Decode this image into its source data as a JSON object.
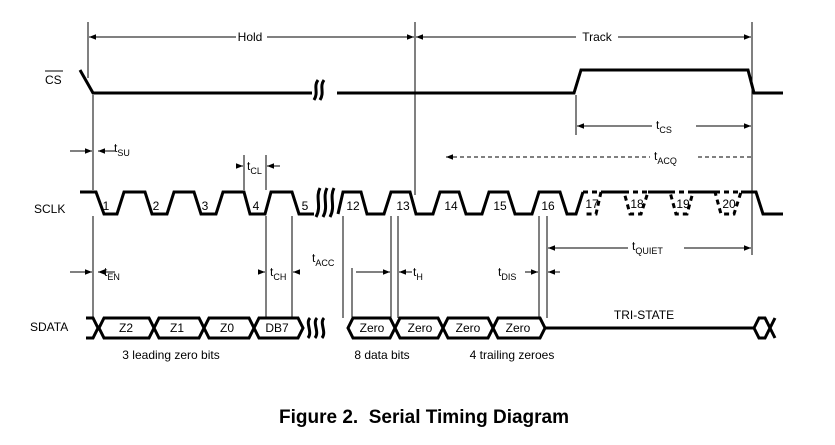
{
  "phases": {
    "hold": "Hold",
    "track": "Track"
  },
  "signals": {
    "cs": "CS",
    "sclk": "SCLK",
    "sdata": "SDATA"
  },
  "clock_numbers": [
    "1",
    "2",
    "3",
    "4",
    "5",
    "12",
    "13",
    "14",
    "15",
    "16",
    "17",
    "18",
    "19",
    "20"
  ],
  "timing": {
    "su": {
      "t": "t",
      "sub": "SU"
    },
    "cl": {
      "t": "t",
      "sub": "CL"
    },
    "cs": {
      "t": "t",
      "sub": "CS"
    },
    "acq": {
      "t": "t",
      "sub": "ACQ"
    },
    "en": {
      "t": "t",
      "sub": "EN"
    },
    "ch": {
      "t": "t",
      "sub": "CH"
    },
    "acc": {
      "t": "t",
      "sub": "ACC"
    },
    "h": {
      "t": "t",
      "sub": "H"
    },
    "dis": {
      "t": "t",
      "sub": "DIS"
    },
    "quiet": {
      "t": "t",
      "sub": "QUIET"
    }
  },
  "data_cells": [
    "Z2",
    "Z1",
    "Z0",
    "DB7",
    "Zero",
    "Zero",
    "Zero",
    "Zero"
  ],
  "tristate": "TRI-STATE",
  "groups": {
    "leading": "3 leading zero bits",
    "data": "8 data bits",
    "trailing": "4 trailing zeroes"
  },
  "caption": "Figure 2.  Serial Timing Diagram"
}
